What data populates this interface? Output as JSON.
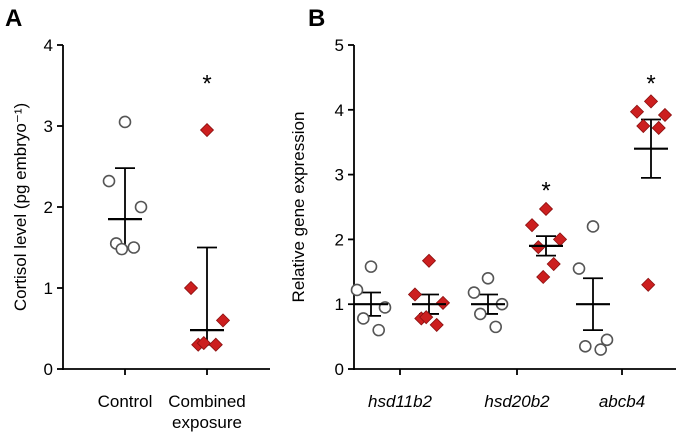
{
  "colors": {
    "control": "#ffffff",
    "exposure": "#cc1f1f",
    "outline": "#555555",
    "axis": "#000000"
  },
  "chart_data": [
    {
      "panel": "A",
      "type": "scatter",
      "ylabel": "Cortisol level (pg embryo⁻¹)",
      "ylim": [
        0,
        4
      ],
      "yticks": [
        "0",
        "1",
        "2",
        "3",
        "4"
      ],
      "categories": [
        {
          "label": [
            "Control"
          ],
          "italic": false
        },
        {
          "label": [
            "Combined",
            "exposure"
          ],
          "italic": false
        }
      ],
      "groups": [
        {
          "category": 0,
          "marker": "circle",
          "color": "#ffffff",
          "points": [
            3.05,
            2.32,
            2.0,
            1.55,
            1.5,
            1.48
          ],
          "mean": 1.85,
          "err_low": 1.5,
          "err_high": 2.48
        },
        {
          "category": 1,
          "marker": "diamond",
          "color": "#cc1f1f",
          "points": [
            2.95,
            1.0,
            0.6,
            0.3,
            0.3,
            0.32
          ],
          "mean": 0.48,
          "err_low": 0.3,
          "err_high": 1.5
        }
      ],
      "annotations": [
        {
          "text": "*",
          "category": 1,
          "y": 3.6
        }
      ]
    },
    {
      "panel": "B",
      "type": "scatter",
      "ylabel": "Relative gene expression",
      "ylim": [
        0,
        5
      ],
      "yticks": [
        "0",
        "1",
        "2",
        "3",
        "4",
        "5"
      ],
      "categories": [
        {
          "label": [
            "hsd11b2"
          ],
          "italic": true
        },
        {
          "label": [
            "hsd20b2"
          ],
          "italic": true
        },
        {
          "label": [
            "abcb4"
          ],
          "italic": true
        }
      ],
      "groups": [
        {
          "category": 0,
          "side": -1,
          "marker": "circle",
          "color": "#ffffff",
          "points": [
            1.58,
            1.22,
            0.95,
            0.78,
            0.6
          ],
          "mean": 1.0,
          "err_low": 0.82,
          "err_high": 1.18
        },
        {
          "category": 0,
          "side": 1,
          "marker": "diamond",
          "color": "#cc1f1f",
          "points": [
            1.67,
            1.15,
            1.02,
            0.78,
            0.68,
            0.8
          ],
          "mean": 1.0,
          "err_low": 0.85,
          "err_high": 1.15
        },
        {
          "category": 1,
          "side": -1,
          "marker": "circle",
          "color": "#ffffff",
          "points": [
            1.4,
            1.18,
            1.0,
            0.85,
            0.65
          ],
          "mean": 1.0,
          "err_low": 0.85,
          "err_high": 1.15
        },
        {
          "category": 1,
          "side": 1,
          "marker": "diamond",
          "color": "#cc1f1f",
          "points": [
            2.47,
            2.22,
            2.0,
            1.88,
            1.62,
            1.42
          ],
          "mean": 1.9,
          "err_low": 1.75,
          "err_high": 2.05
        },
        {
          "category": 2,
          "side": -1,
          "marker": "circle",
          "color": "#ffffff",
          "points": [
            2.2,
            1.55,
            0.45,
            0.35,
            0.3
          ],
          "mean": 1.0,
          "err_low": 0.6,
          "err_high": 1.4
        },
        {
          "category": 2,
          "side": 1,
          "marker": "diamond",
          "color": "#cc1f1f",
          "points": [
            4.13,
            3.97,
            3.92,
            3.75,
            3.72,
            1.3
          ],
          "mean": 3.4,
          "err_low": 2.95,
          "err_high": 3.85
        }
      ],
      "annotations": [
        {
          "text": "*",
          "category": 1,
          "y": 2.85
        },
        {
          "text": "*",
          "category": 2,
          "y": 4.5
        }
      ]
    }
  ]
}
